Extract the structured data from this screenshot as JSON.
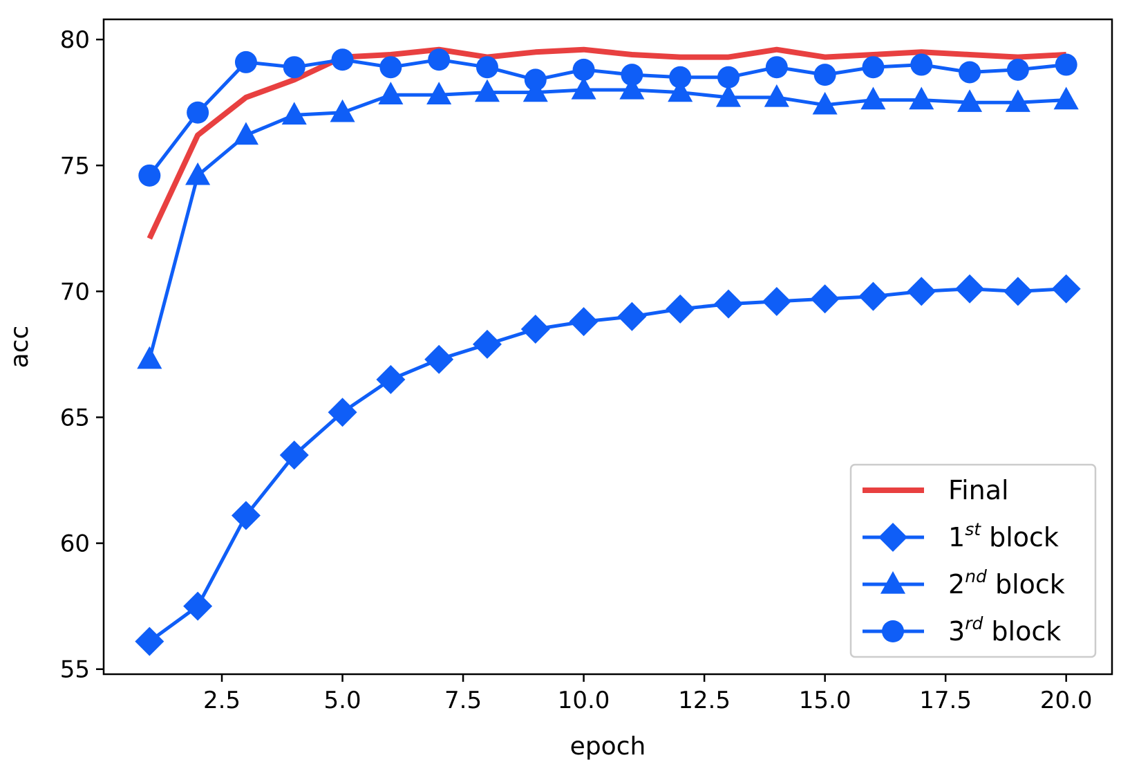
{
  "chart_data": {
    "type": "line",
    "title": "",
    "xlabel": "epoch",
    "ylabel": "acc",
    "xlim": [
      0.05,
      20.95
    ],
    "ylim": [
      54.8,
      80.8
    ],
    "xticks": [
      2.5,
      5.0,
      7.5,
      10.0,
      12.5,
      15.0,
      17.5,
      20.0
    ],
    "xtick_labels": [
      "2.5",
      "5.0",
      "7.5",
      "10.0",
      "12.5",
      "15.0",
      "17.5",
      "20.0"
    ],
    "yticks": [
      55,
      60,
      65,
      70,
      75,
      80
    ],
    "ytick_labels": [
      "55",
      "60",
      "65",
      "70",
      "75",
      "80"
    ],
    "grid": false,
    "legend_position": "lower-right",
    "colors": {
      "final": "#e84040",
      "block": "#0f5ef7"
    },
    "x": [
      1,
      2,
      3,
      4,
      5,
      6,
      7,
      8,
      9,
      10,
      11,
      12,
      13,
      14,
      15,
      16,
      17,
      18,
      19,
      20
    ],
    "series": [
      {
        "name": "Final",
        "legend_base": "Final",
        "legend_sup": "",
        "legend_rest": "",
        "marker": "none",
        "color": "#e84040",
        "values": [
          72.1,
          76.2,
          77.7,
          78.4,
          79.3,
          79.4,
          79.6,
          79.3,
          79.5,
          79.6,
          79.4,
          79.3,
          79.3,
          79.6,
          79.3,
          79.4,
          79.5,
          79.4,
          79.3,
          79.4
        ]
      },
      {
        "name": "1st block",
        "legend_base": "1",
        "legend_sup": "st",
        "legend_rest": " block",
        "marker": "diamond",
        "color": "#0f5ef7",
        "values": [
          56.1,
          57.5,
          61.1,
          63.5,
          65.2,
          66.5,
          67.3,
          67.9,
          68.5,
          68.8,
          69.0,
          69.3,
          69.5,
          69.6,
          69.7,
          69.8,
          70.0,
          70.1,
          70.0,
          70.1
        ]
      },
      {
        "name": "2nd block",
        "legend_base": "2",
        "legend_sup": "nd",
        "legend_rest": " block",
        "marker": "triangle",
        "color": "#0f5ef7",
        "values": [
          67.3,
          74.6,
          76.2,
          77.0,
          77.1,
          77.8,
          77.8,
          77.9,
          77.9,
          78.0,
          78.0,
          77.9,
          77.7,
          77.7,
          77.4,
          77.6,
          77.6,
          77.5,
          77.5,
          77.6
        ]
      },
      {
        "name": "3rd block",
        "legend_base": "3",
        "legend_sup": "rd",
        "legend_rest": " block",
        "marker": "circle",
        "color": "#0f5ef7",
        "values": [
          74.6,
          77.1,
          79.1,
          78.9,
          79.2,
          78.9,
          79.2,
          78.9,
          78.4,
          78.8,
          78.6,
          78.5,
          78.5,
          78.9,
          78.6,
          78.9,
          79.0,
          78.7,
          78.8,
          79.0
        ]
      }
    ]
  }
}
